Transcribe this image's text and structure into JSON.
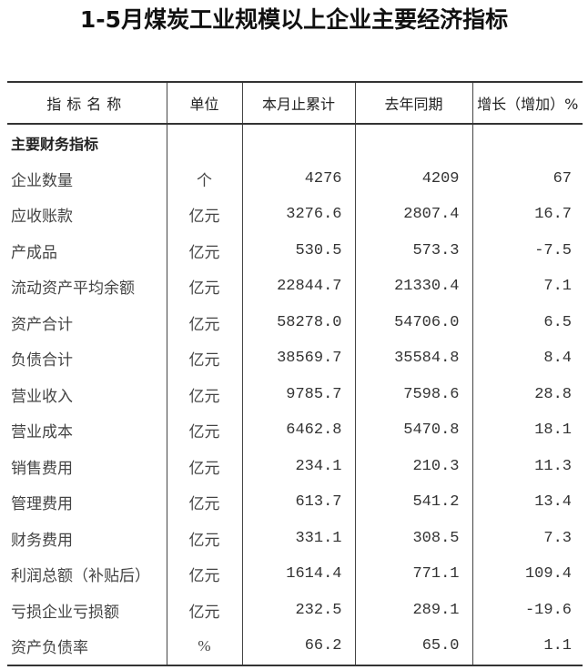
{
  "title": "1-5月煤炭工业规模以上企业主要经济指标",
  "table": {
    "headers": [
      "指标名称",
      "单位",
      "本月止累计",
      "去年同期",
      "增长（增加）%"
    ],
    "section": "主要财务指标",
    "rows": [
      {
        "name": "企业数量",
        "unit": "个",
        "current": "4276",
        "prior": "4209",
        "growth": "67"
      },
      {
        "name": "应收账款",
        "unit": "亿元",
        "current": "3276.6",
        "prior": "2807.4",
        "growth": "16.7"
      },
      {
        "name": "产成品",
        "unit": "亿元",
        "current": "530.5",
        "prior": "573.3",
        "growth": "-7.5"
      },
      {
        "name": "流动资产平均余额",
        "unit": "亿元",
        "current": "22844.7",
        "prior": "21330.4",
        "growth": "7.1"
      },
      {
        "name": "资产合计",
        "unit": "亿元",
        "current": "58278.0",
        "prior": "54706.0",
        "growth": "6.5"
      },
      {
        "name": "负债合计",
        "unit": "亿元",
        "current": "38569.7",
        "prior": "35584.8",
        "growth": "8.4"
      },
      {
        "name": "营业收入",
        "unit": "亿元",
        "current": "9785.7",
        "prior": "7598.6",
        "growth": "28.8"
      },
      {
        "name": "营业成本",
        "unit": "亿元",
        "current": "6462.8",
        "prior": "5470.8",
        "growth": "18.1"
      },
      {
        "name": "销售费用",
        "unit": "亿元",
        "current": "234.1",
        "prior": "210.3",
        "growth": "11.3"
      },
      {
        "name": "管理费用",
        "unit": "亿元",
        "current": "613.7",
        "prior": "541.2",
        "growth": "13.4"
      },
      {
        "name": "财务费用",
        "unit": "亿元",
        "current": "331.1",
        "prior": "308.5",
        "growth": "7.3"
      },
      {
        "name": "利润总额（补贴后）",
        "unit": "亿元",
        "current": "1614.4",
        "prior": "771.1",
        "growth": "109.4"
      },
      {
        "name": "亏损企业亏损额",
        "unit": "亿元",
        "current": "232.5",
        "prior": "289.1",
        "growth": "-19.6"
      },
      {
        "name": "资产负债率",
        "unit": "%",
        "current": "66.2",
        "prior": "65.0",
        "growth": "1.1"
      }
    ]
  }
}
